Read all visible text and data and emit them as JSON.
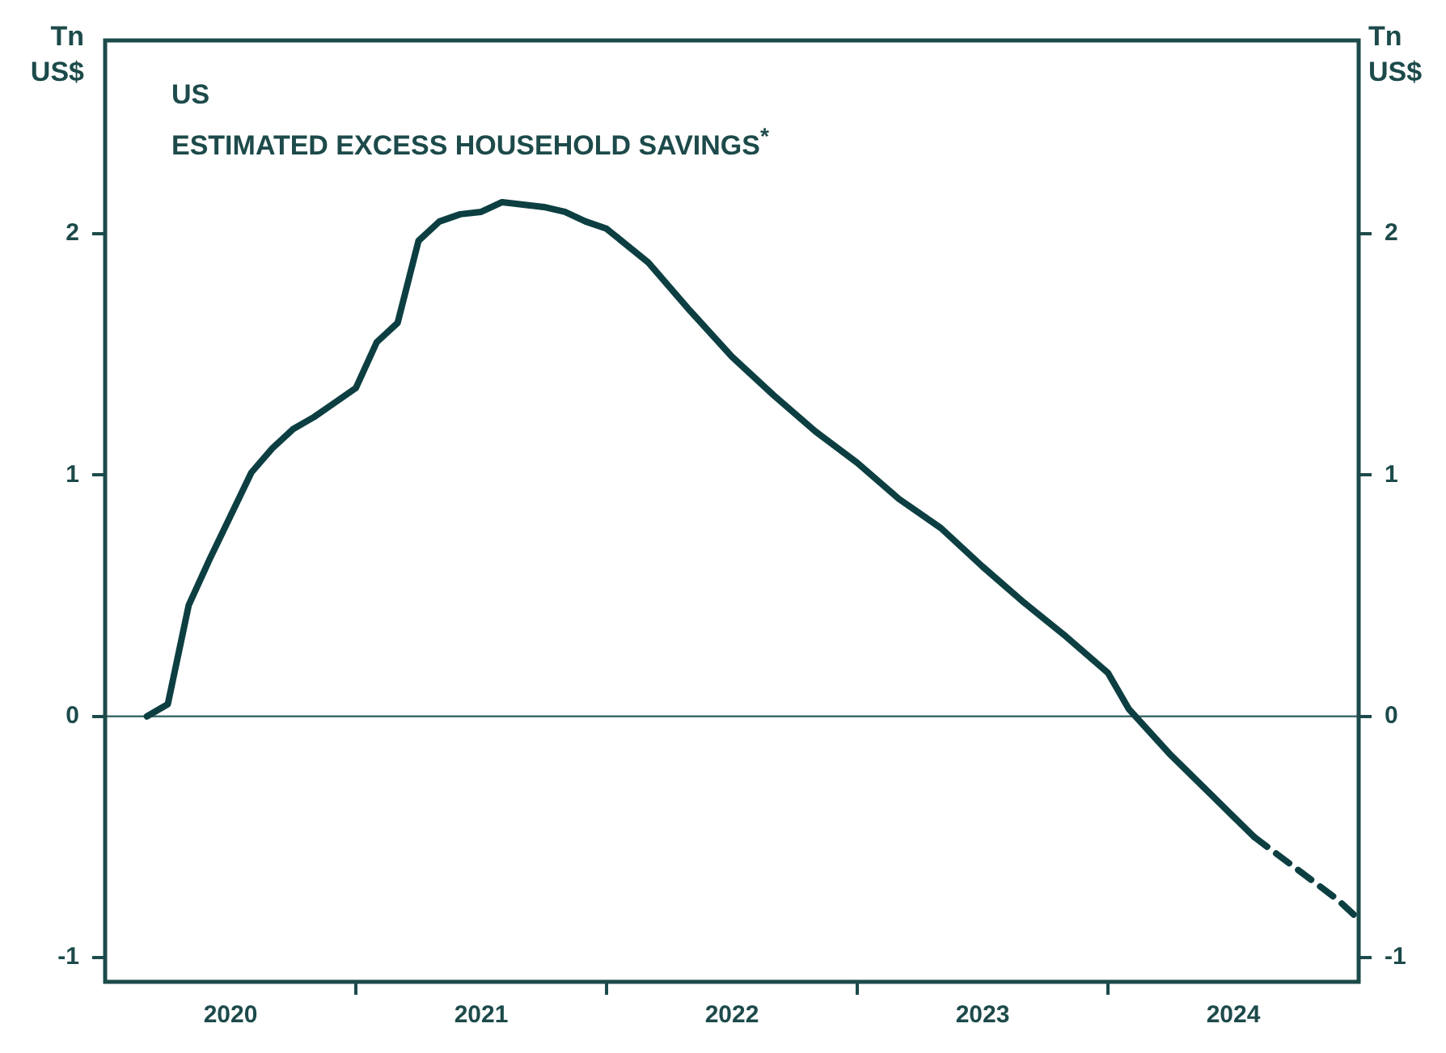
{
  "chart_data": {
    "type": "line",
    "title": "US",
    "subtitle": "ESTIMATED EXCESS HOUSEHOLD SAVINGS$^{*}$",
    "ylabel": "Tn US$",
    "y2label": "Tn US$",
    "xlim": [
      "2020-01",
      "2025-01"
    ],
    "xticks": [
      {
        "value": "2020-07",
        "label": "2020"
      },
      {
        "value": "2021-07",
        "label": "2021"
      },
      {
        "value": "2022-07",
        "label": "2022"
      },
      {
        "value": "2023-07",
        "label": "2023"
      },
      {
        "value": "2024-07",
        "label": "2024"
      },
      {
        "value": "2021-01",
        "label": null
      },
      {
        "value": "2022-01",
        "label": null
      },
      {
        "value": "2023-01",
        "label": null
      },
      {
        "value": "2024-01",
        "label": null
      }
    ],
    "ylim": [
      -1.1,
      2.8
    ],
    "yticks": [
      -1,
      0,
      1,
      2
    ],
    "y2lim": [
      -1.1,
      2.8
    ],
    "y2ticks": [
      -1,
      0,
      1,
      2
    ],
    "legend": false,
    "marker": "none",
    "ref_lines": [
      {
        "axis": "y",
        "value": 0,
        "color": "#3f6b6b",
        "line_style": "solid"
      }
    ],
    "series": [
      {
        "color": "#0d3f42",
        "line_style": "solid",
        "x": [
          "2020-03",
          "2020-04",
          "2020-05",
          "2020-06",
          "2020-07",
          "2020-08",
          "2020-09",
          "2020-10",
          "2020-11",
          "2020-12",
          "2021-01",
          "2021-02",
          "2021-03",
          "2021-04",
          "2021-05",
          "2021-06",
          "2021-07",
          "2021-08",
          "2021-09",
          "2021-10",
          "2021-11",
          "2021-12",
          "2022-01",
          "2022-03",
          "2022-05",
          "2022-07",
          "2022-09",
          "2022-11",
          "2023-01",
          "2023-03",
          "2023-05",
          "2023-07",
          "2023-09",
          "2023-11",
          "2024-01",
          "2024-02",
          "2024-04",
          "2024-06",
          "2024-08"
        ],
        "values": [
          0,
          0.05,
          0.46,
          0.65,
          0.83,
          1.01,
          1.11,
          1.19,
          1.24,
          1.3,
          1.36,
          1.55,
          1.63,
          1.97,
          2.05,
          2.08,
          2.09,
          2.13,
          2.12,
          2.11,
          2.09,
          2.05,
          2.02,
          1.88,
          1.68,
          1.49,
          1.33,
          1.18,
          1.05,
          0.9,
          0.78,
          0.62,
          0.47,
          0.33,
          0.18,
          0.03,
          -0.16,
          -0.33,
          -0.5
        ]
      },
      {
        "color": "#0d3f42",
        "line_style": "dashed",
        "x": [
          "2024-08",
          "2024-10",
          "2024-12",
          "2025-01"
        ],
        "values": [
          -0.5,
          -0.63,
          -0.76,
          -0.84
        ]
      }
    ]
  }
}
